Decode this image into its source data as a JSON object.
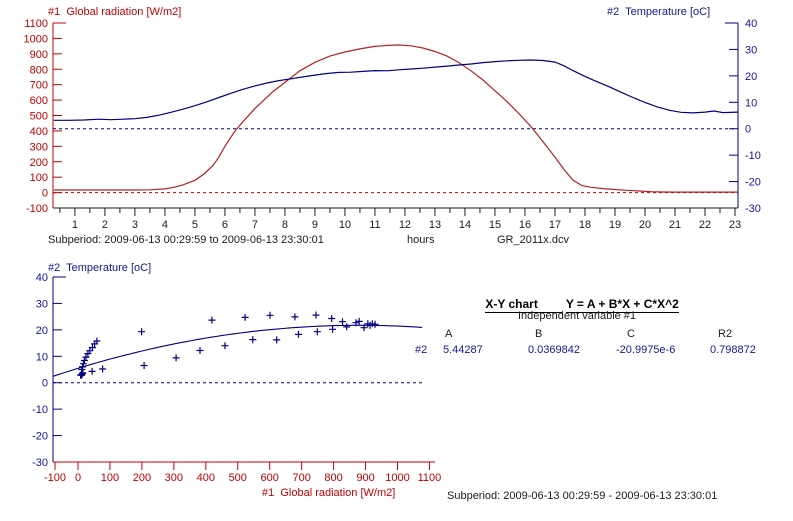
{
  "colors": {
    "radiation_red": "#c00000",
    "temperature_blue": "#000080",
    "blue_text": "#16169a",
    "axis_black": "#1c1c1c",
    "background": "#ffffff"
  },
  "labels": {
    "top_left_axis": "#1  Global radiation [W/m2]",
    "top_right_axis": "#2  Temperature [oC]",
    "subperiod_top": "Subperiod: 2009-06-13 00:29:59 to 2009-06-13 23:30:01",
    "hours_unit": "hours",
    "file_name": "GR_2011x.dcv",
    "scatter_title": "#2  Temperature [oC]",
    "scatter_x_axis": "#1  Global radiation [W/m2]",
    "subperiod_bottom": "Subperiod: 2009-06-13 00:29:59 - 2009-06-13 23:30:01"
  },
  "regression": {
    "title": "X-Y chart",
    "formula": "Y = A + B*X + C*X^2",
    "subtitle": "Independent variable #1",
    "headers": [
      "A",
      "B",
      "C",
      "R2"
    ],
    "row_label": "#2",
    "values": [
      "5.44287",
      "0.0369842",
      "-20.9975e-6",
      "0.798872"
    ]
  },
  "chart_data": [
    {
      "id": "time-series",
      "type": "line",
      "title": "",
      "xlabel": "hours",
      "x_ticks": [
        1,
        2,
        3,
        4,
        5,
        6,
        7,
        8,
        9,
        10,
        11,
        12,
        13,
        14,
        15,
        16,
        17,
        18,
        19,
        20,
        21,
        22,
        23
      ],
      "x_range": [
        0.27,
        23.1
      ],
      "grid": false,
      "axes": {
        "left": {
          "label": "#1  Global radiation [W/m2]",
          "color": "#c00000",
          "range": [
            -100,
            1100
          ],
          "ticks": [
            1100,
            1000,
            900,
            800,
            700,
            600,
            500,
            400,
            300,
            200,
            100,
            0,
            -100
          ],
          "zero_line": "dashed"
        },
        "right": {
          "label": "#2  Temperature [oC]",
          "color": "#000080",
          "range": [
            -30,
            40
          ],
          "ticks": [
            40,
            30,
            20,
            10,
            0,
            -10,
            -20,
            -30
          ],
          "zero_line": "dashed"
        }
      },
      "series": [
        {
          "name": "Global radiation [W/m2]",
          "axis": "left",
          "color": "#b42222",
          "points": [
            [
              0.3,
              17
            ],
            [
              1,
              17
            ],
            [
              1.5,
              17
            ],
            [
              2,
              17
            ],
            [
              2.5,
              17
            ],
            [
              3,
              17
            ],
            [
              3.5,
              18
            ],
            [
              4,
              24
            ],
            [
              4.3,
              34
            ],
            [
              4.6,
              50
            ],
            [
              5,
              80
            ],
            [
              5.3,
              120
            ],
            [
              5.6,
              175
            ],
            [
              5.8,
              230
            ],
            [
              6,
              300
            ],
            [
              6.3,
              390
            ],
            [
              6.6,
              460
            ],
            [
              7,
              545
            ],
            [
              7.3,
              600
            ],
            [
              7.6,
              655
            ],
            [
              8,
              715
            ],
            [
              8.5,
              790
            ],
            [
              9,
              845
            ],
            [
              9.5,
              885
            ],
            [
              10,
              912
            ],
            [
              10.5,
              932
            ],
            [
              11,
              948
            ],
            [
              11.4,
              955
            ],
            [
              11.8,
              957
            ],
            [
              12.2,
              952
            ],
            [
              12.6,
              938
            ],
            [
              13,
              915
            ],
            [
              13.4,
              885
            ],
            [
              13.8,
              843
            ],
            [
              14.2,
              790
            ],
            [
              14.6,
              730
            ],
            [
              15,
              660
            ],
            [
              15.4,
              590
            ],
            [
              15.8,
              512
            ],
            [
              16.2,
              428
            ],
            [
              16.6,
              330
            ],
            [
              17,
              230
            ],
            [
              17.3,
              150
            ],
            [
              17.6,
              80
            ],
            [
              17.9,
              45
            ],
            [
              18.2,
              34
            ],
            [
              18.6,
              26
            ],
            [
              19,
              20
            ],
            [
              19.4,
              15
            ],
            [
              19.8,
              10
            ],
            [
              20.2,
              6
            ],
            [
              20.6,
              4
            ],
            [
              21,
              3
            ],
            [
              21.5,
              3
            ],
            [
              22,
              3
            ],
            [
              22.5,
              3
            ],
            [
              23.1,
              3
            ]
          ]
        },
        {
          "name": "Temperature [oC]",
          "axis": "right",
          "color": "#000080",
          "points": [
            [
              0.3,
              3.2
            ],
            [
              0.8,
              3.2
            ],
            [
              1.3,
              3.3
            ],
            [
              1.8,
              3.6
            ],
            [
              2.2,
              3.4
            ],
            [
              2.6,
              3.6
            ],
            [
              3,
              3.8
            ],
            [
              3.4,
              4.3
            ],
            [
              3.8,
              5.1
            ],
            [
              4.2,
              6.2
            ],
            [
              4.6,
              7.4
            ],
            [
              5,
              8.7
            ],
            [
              5.4,
              10.2
            ],
            [
              5.8,
              11.8
            ],
            [
              6.2,
              13.4
            ],
            [
              6.6,
              14.9
            ],
            [
              7,
              16.2
            ],
            [
              7.4,
              17.3
            ],
            [
              7.8,
              18.2
            ],
            [
              8.2,
              18.9
            ],
            [
              8.6,
              19.6
            ],
            [
              9,
              20.3
            ],
            [
              9.4,
              20.9
            ],
            [
              9.8,
              21.3
            ],
            [
              10.2,
              21.4
            ],
            [
              10.6,
              21.7
            ],
            [
              11,
              22.0
            ],
            [
              11.4,
              21.9
            ],
            [
              11.8,
              22.3
            ],
            [
              12.2,
              22.6
            ],
            [
              12.6,
              22.9
            ],
            [
              13,
              23.3
            ],
            [
              13.4,
              23.7
            ],
            [
              13.8,
              24.1
            ],
            [
              14.2,
              24.5
            ],
            [
              14.6,
              25.0
            ],
            [
              15,
              25.4
            ],
            [
              15.4,
              25.7
            ],
            [
              15.8,
              25.9
            ],
            [
              16.2,
              26.0
            ],
            [
              16.6,
              25.8
            ],
            [
              17,
              25.2
            ],
            [
              17.3,
              23.8
            ],
            [
              17.6,
              22.0
            ],
            [
              18,
              19.8
            ],
            [
              18.4,
              17.8
            ],
            [
              18.8,
              15.9
            ],
            [
              19.2,
              13.8
            ],
            [
              19.6,
              11.8
            ],
            [
              20,
              9.9
            ],
            [
              20.4,
              8.3
            ],
            [
              20.8,
              7.0
            ],
            [
              21.2,
              6.2
            ],
            [
              21.6,
              6.0
            ],
            [
              22,
              6.3
            ],
            [
              22.3,
              6.7
            ],
            [
              22.6,
              6.1
            ],
            [
              23.1,
              6.3
            ]
          ]
        }
      ]
    },
    {
      "id": "xy-regression",
      "type": "scatter",
      "title": "X-Y chart",
      "xlabel": "#1  Global radiation [W/m2]",
      "ylabel": "#2  Temperature [oC]",
      "x_axis": {
        "color": "#c00000",
        "range": [
          -100,
          1100
        ],
        "ticks": [
          -100,
          0,
          100,
          200,
          300,
          400,
          500,
          600,
          700,
          800,
          900,
          1000,
          1100
        ]
      },
      "y_axis": {
        "color": "#000080",
        "range": [
          -30,
          40
        ],
        "ticks": [
          40,
          30,
          20,
          10,
          0,
          -10,
          -20,
          -30
        ],
        "zero_line": "dashed"
      },
      "marker": "plus",
      "points": [
        [
          8,
          2.9
        ],
        [
          11,
          2.8
        ],
        [
          13,
          3.3
        ],
        [
          15,
          3.7
        ],
        [
          12,
          5.0
        ],
        [
          14,
          6.0
        ],
        [
          17,
          7.2
        ],
        [
          20,
          8.4
        ],
        [
          25,
          9.7
        ],
        [
          31,
          11.0
        ],
        [
          37,
          12.1
        ],
        [
          45,
          13.3
        ],
        [
          52,
          14.7
        ],
        [
          59,
          15.8
        ],
        [
          44,
          4.3
        ],
        [
          77,
          5.2
        ],
        [
          199,
          19.3
        ],
        [
          207,
          6.5
        ],
        [
          307,
          9.4
        ],
        [
          382,
          12.2
        ],
        [
          419,
          23.7
        ],
        [
          460,
          14.0
        ],
        [
          523,
          24.7
        ],
        [
          547,
          16.3
        ],
        [
          601,
          25.5
        ],
        [
          622,
          16.2
        ],
        [
          679,
          24.9
        ],
        [
          690,
          18.3
        ],
        [
          745,
          25.6
        ],
        [
          749,
          19.3
        ],
        [
          794,
          24.3
        ],
        [
          797,
          20.2
        ],
        [
          828,
          23.1
        ],
        [
          841,
          21.1
        ],
        [
          870,
          22.7
        ],
        [
          880,
          23.2
        ],
        [
          895,
          20.8
        ],
        [
          907,
          22.3
        ],
        [
          914,
          21.7
        ],
        [
          921,
          22.3
        ],
        [
          930,
          22.1
        ]
      ],
      "fit": {
        "type": "quadratic",
        "formula": "Y = A + B*X + C*X^2",
        "a": 5.44287,
        "b": 0.0369842,
        "c": -2.09975e-05,
        "r2": 0.798872,
        "domain": [
          -78,
          1080
        ]
      }
    }
  ]
}
